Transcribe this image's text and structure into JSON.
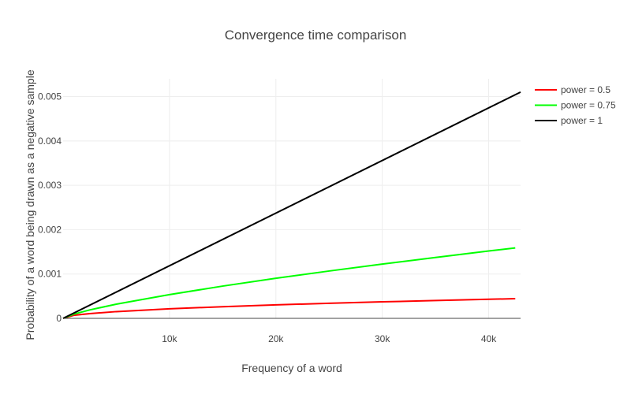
{
  "chart_data": {
    "type": "line",
    "title": "Convergence time comparison",
    "xlabel": "Frequency of a word",
    "ylabel": "Probability of a word being drawn as a negative sample",
    "xlim": [
      0,
      43000
    ],
    "ylim": [
      0,
      0.0054
    ],
    "x_ticks": [
      10000,
      20000,
      30000,
      40000
    ],
    "x_tick_labels": [
      "10k",
      "20k",
      "30k",
      "40k"
    ],
    "y_ticks": [
      0,
      0.001,
      0.002,
      0.003,
      0.004,
      0.005
    ],
    "y_tick_labels": [
      "0",
      "0.001",
      "0.002",
      "0.003",
      "0.004",
      "0.005"
    ],
    "grid": true,
    "legend_position": "top-right",
    "series": [
      {
        "name": "power = 0.5",
        "color": "#ff0000",
        "x": [
          0,
          1000,
          2500,
          5000,
          10000,
          15000,
          20000,
          25000,
          30000,
          35000,
          40000,
          42500
        ],
        "y": [
          0,
          6.8e-05,
          0.000107,
          0.000152,
          0.000215,
          0.000263,
          0.000304,
          0.00034,
          0.000372,
          0.000402,
          0.00043,
          0.000443
        ]
      },
      {
        "name": "power = 0.75",
        "color": "#00ff00",
        "x": [
          0,
          1000,
          2500,
          5000,
          10000,
          15000,
          20000,
          25000,
          30000,
          35000,
          40000,
          42500
        ],
        "y": [
          0,
          9.5e-05,
          0.00019,
          0.00032,
          0.000536,
          0.000727,
          0.000903,
          0.001067,
          0.001223,
          0.001373,
          0.001518,
          0.001588
        ]
      },
      {
        "name": "power = 1",
        "color": "#000000",
        "x": [
          0,
          43000
        ],
        "y": [
          0,
          0.0051
        ]
      }
    ]
  }
}
